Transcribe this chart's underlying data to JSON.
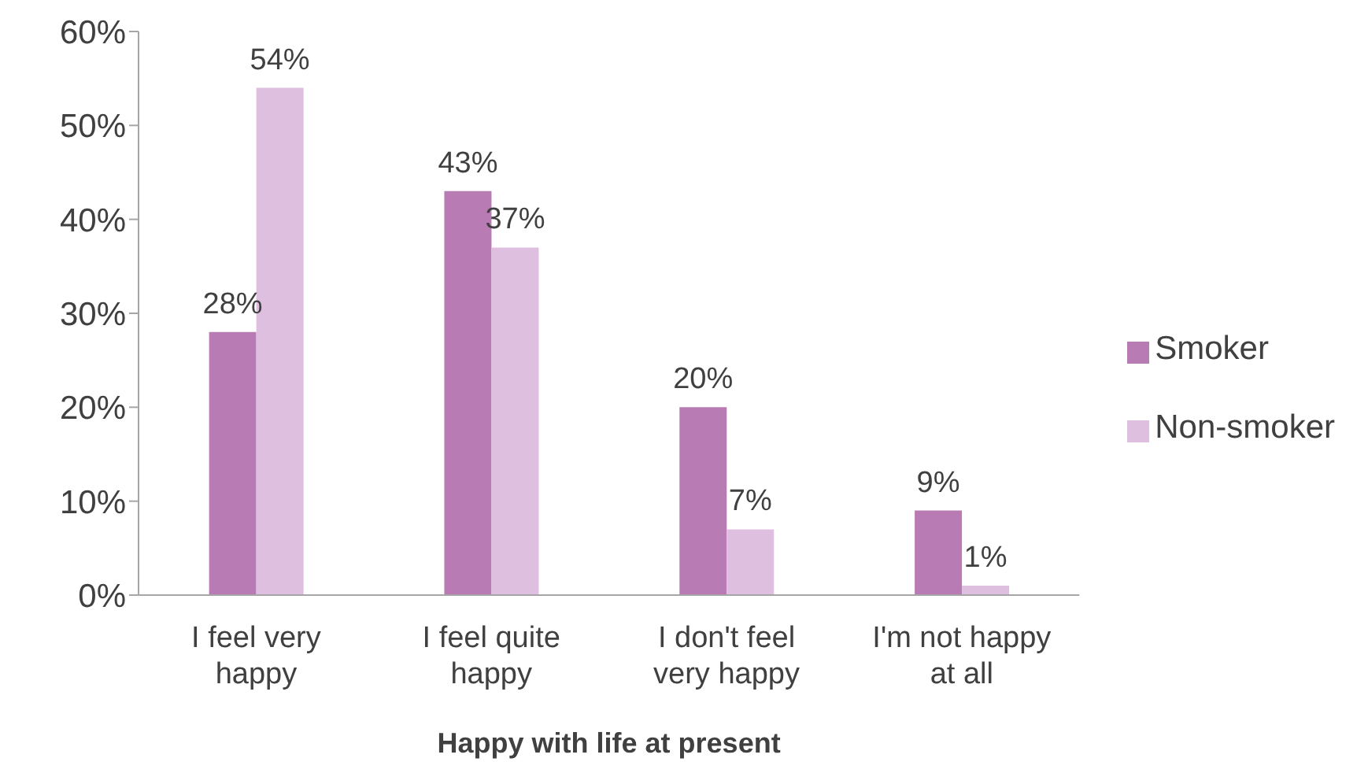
{
  "chart_data": {
    "type": "bar",
    "xlabel": "Happy with life at present",
    "categories": [
      "I feel very happy",
      "I feel quite happy",
      "I don't feel very happy",
      "I'm not happy at all"
    ],
    "series": [
      {
        "name": "Smoker",
        "color": "#b87bb3",
        "values": [
          28,
          43,
          20,
          9
        ],
        "value_labels": [
          "28%",
          "43%",
          "20%",
          "9%"
        ]
      },
      {
        "name": "Non-smoker",
        "color": "#dfbfdf",
        "values": [
          54,
          37,
          7,
          1
        ],
        "value_labels": [
          "54%",
          "37%",
          "7%",
          "1%"
        ]
      }
    ],
    "ylim": [
      0,
      60
    ],
    "yticks": [
      {
        "value": 0,
        "label": "0%"
      },
      {
        "value": 10,
        "label": "10%"
      },
      {
        "value": 20,
        "label": "20%"
      },
      {
        "value": 30,
        "label": "30%"
      },
      {
        "value": 40,
        "label": "40%"
      },
      {
        "value": 50,
        "label": "50%"
      },
      {
        "value": 60,
        "label": "60%"
      }
    ],
    "grid": false,
    "legend": "right"
  }
}
